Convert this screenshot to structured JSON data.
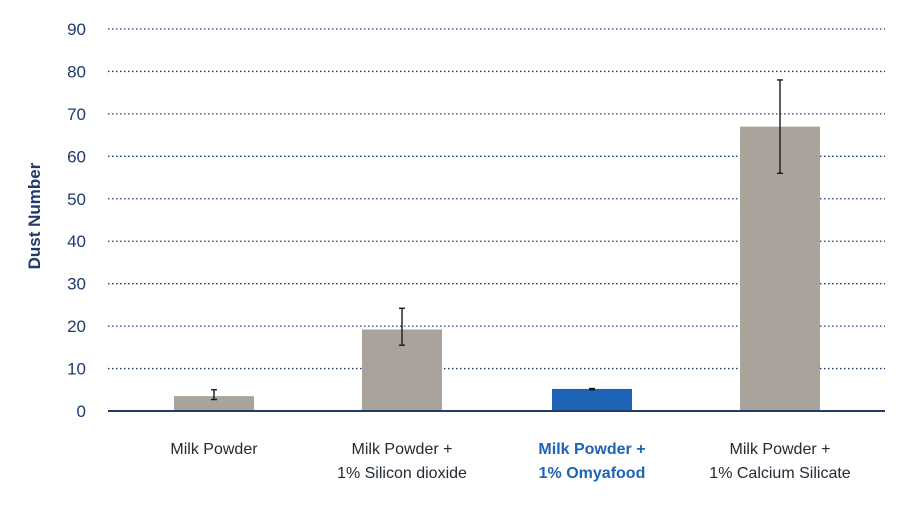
{
  "chart_data": {
    "type": "bar",
    "ylabel": "Dust Number",
    "xlabel": "",
    "title": "",
    "ylim": [
      0,
      90
    ],
    "yticks": [
      0,
      10,
      20,
      30,
      40,
      50,
      60,
      70,
      80,
      90
    ],
    "grid": true,
    "categories": [
      {
        "lines": [
          "Milk Powder"
        ],
        "highlight": false
      },
      {
        "lines": [
          "Milk Powder +",
          "1% Silicon dioxide"
        ],
        "highlight": false
      },
      {
        "lines": [
          "Milk Powder +",
          "1% Omyafood"
        ],
        "highlight": true
      },
      {
        "lines": [
          "Milk Powder +",
          "1% Calcium Silicate"
        ],
        "highlight": false
      }
    ],
    "values": [
      3.5,
      19.2,
      5.2,
      67
    ],
    "error_low": [
      2.7,
      15.5,
      5.0,
      56
    ],
    "error_high": [
      5.0,
      24.2,
      5.3,
      78
    ],
    "colors": {
      "bar": "#aaa39c",
      "highlight_bar": "#1e64b4",
      "grid": "#1f3a6b",
      "axis": "#1f3a6b",
      "error": "#1a1a1a"
    }
  }
}
